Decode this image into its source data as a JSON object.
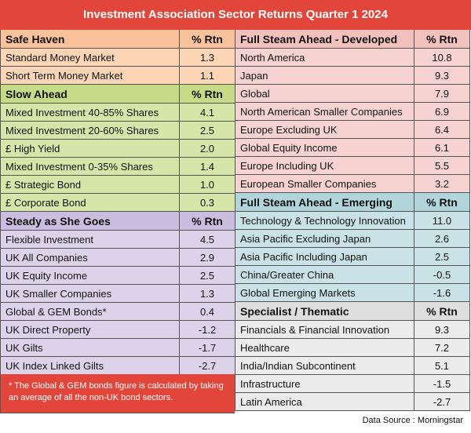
{
  "title": "Investment Association Sector Returns Quarter 1 2024",
  "left": [
    {
      "header": "Safe Haven",
      "col": "% Rtn",
      "color": "orange",
      "rows": [
        {
          "name": "Standard Money Market",
          "value": "1.3"
        },
        {
          "name": "Short Term Money Market",
          "value": "1.1"
        }
      ]
    },
    {
      "header": "Slow Ahead",
      "col": "% Rtn",
      "color": "green",
      "rows": [
        {
          "name": "Mixed Investment 40-85% Shares",
          "value": "4.1"
        },
        {
          "name": "Mixed Investment 20-60% Shares",
          "value": "2.5"
        },
        {
          "name": "£ High Yield",
          "value": "2.0"
        },
        {
          "name": "Mixed Investment 0-35% Shares",
          "value": "1.4"
        },
        {
          "name": "£ Strategic Bond",
          "value": "1.0"
        },
        {
          "name": "£ Corporate Bond",
          "value": "0.3"
        }
      ]
    },
    {
      "header": "Steady as She Goes",
      "col": "% Rtn",
      "color": "purple",
      "rows": [
        {
          "name": "Flexible Investment",
          "value": "4.5"
        },
        {
          "name": "UK All Companies",
          "value": "2.9"
        },
        {
          "name": "UK Equity Income",
          "value": "2.5"
        },
        {
          "name": "UK Smaller Companies",
          "value": "1.3"
        },
        {
          "name": "Global & GEM Bonds*",
          "value": "0.4"
        },
        {
          "name": "UK Direct Property",
          "value": "-1.2"
        },
        {
          "name": "UK Gilts",
          "value": "-1.7"
        },
        {
          "name": "UK Index Linked Gilts",
          "value": "-2.7"
        }
      ]
    }
  ],
  "right": [
    {
      "header": "Full Steam Ahead - Developed",
      "col": "% Rtn",
      "color": "pink",
      "rows": [
        {
          "name": "North America",
          "value": "10.8"
        },
        {
          "name": "Japan",
          "value": "9.3"
        },
        {
          "name": "Global",
          "value": "7.9"
        },
        {
          "name": "North American Smaller Companies",
          "value": "6.9"
        },
        {
          "name": "Europe Excluding UK",
          "value": "6.4"
        },
        {
          "name": "Global Equity Income",
          "value": "6.1"
        },
        {
          "name": "Europe Including UK",
          "value": "5.5"
        },
        {
          "name": "European Smaller Companies",
          "value": "3.2"
        }
      ]
    },
    {
      "header": "Full Steam Ahead - Emerging",
      "col": "% Rtn",
      "color": "teal",
      "rows": [
        {
          "name": "Technology & Technology Innovation",
          "value": "11.0"
        },
        {
          "name": "Asia Pacific Excluding Japan",
          "value": "2.6"
        },
        {
          "name": "Asia Pacific Including Japan",
          "value": "2.5"
        },
        {
          "name": "China/Greater China",
          "value": "-0.5"
        },
        {
          "name": "Global Emerging Markets",
          "value": "-1.6"
        }
      ]
    },
    {
      "header": "Specialist / Thematic",
      "col": "% Rtn",
      "color": "grey",
      "rows": [
        {
          "name": "Financials & Financial Innovation",
          "value": "9.3"
        },
        {
          "name": "Healthcare",
          "value": "7.2"
        },
        {
          "name": "India/Indian Subcontinent",
          "value": "5.1"
        },
        {
          "name": "Infrastructure",
          "value": "-1.5"
        },
        {
          "name": "Latin America",
          "value": "-2.7"
        }
      ]
    }
  ],
  "note": "* The Global & GEM bonds figure is calculated by taking an average of all the non-UK bond sectors.",
  "source": "Data Source : Morningstar"
}
